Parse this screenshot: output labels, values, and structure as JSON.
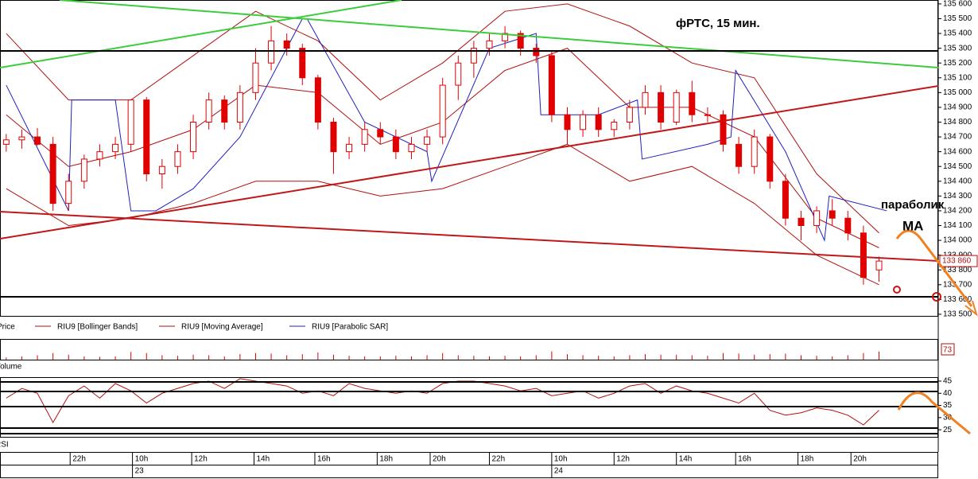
{
  "chart_data": [
    {
      "type": "candlestick",
      "title": "фРТС,  15 мин.",
      "annotations": [
        "параболик",
        "MA"
      ],
      "legend": "Price",
      "color": "#e00000",
      "x": [
        0,
        1,
        2,
        3,
        4,
        5,
        6,
        7,
        8,
        9,
        10,
        11,
        12,
        13,
        14,
        15,
        16,
        17,
        18,
        19,
        20,
        21,
        22,
        23,
        24,
        25,
        26,
        27,
        28,
        29,
        30,
        31,
        32,
        33,
        34,
        35,
        36,
        37,
        38,
        39,
        40,
        41,
        42,
        43,
        44,
        45,
        46,
        47,
        48,
        49,
        50,
        51,
        52,
        53,
        54,
        55,
        56
      ],
      "open": [
        134650,
        134680,
        134700,
        134650,
        134250,
        134400,
        134550,
        134600,
        134650,
        134950,
        134450,
        134500,
        134600,
        134800,
        134950,
        134800,
        135000,
        135200,
        135350,
        135300,
        135100,
        134800,
        134600,
        134650,
        134750,
        134700,
        134600,
        134650,
        134700,
        135050,
        135200,
        135300,
        135350,
        135400,
        135300,
        135250,
        134850,
        134750,
        134850,
        134750,
        134800,
        134900,
        135000,
        134800,
        135000,
        134850,
        134850,
        134650,
        134500,
        134700,
        134400,
        134150,
        134100,
        134200,
        134150,
        134050,
        133800
      ],
      "high": [
        134720,
        134750,
        134760,
        134700,
        134450,
        134580,
        134650,
        134700,
        134950,
        134970,
        134550,
        134650,
        134850,
        135000,
        134980,
        135050,
        135300,
        135450,
        135400,
        135330,
        135120,
        134830,
        134700,
        134800,
        134800,
        134750,
        134700,
        134750,
        135100,
        135250,
        135350,
        135400,
        135450,
        135420,
        135330,
        135280,
        134900,
        134880,
        134900,
        134820,
        134950,
        135050,
        135050,
        135020,
        135080,
        134900,
        134880,
        134700,
        134750,
        134720,
        134450,
        134200,
        134230,
        134280,
        134200,
        134100,
        133890
      ],
      "low": [
        134600,
        134620,
        134640,
        134200,
        134200,
        134350,
        134500,
        134550,
        134600,
        134400,
        134350,
        134450,
        134550,
        134750,
        134750,
        134750,
        134950,
        135150,
        135250,
        135050,
        134750,
        134450,
        134550,
        134600,
        134650,
        134550,
        134550,
        134600,
        134650,
        134950,
        135100,
        135250,
        135300,
        135250,
        135200,
        134800,
        134650,
        134700,
        134700,
        134700,
        134750,
        134850,
        134750,
        134780,
        134800,
        134800,
        134600,
        134450,
        134450,
        134350,
        134100,
        134000,
        134050,
        134100,
        134000,
        133700,
        133720
      ],
      "close": [
        134680,
        134700,
        134650,
        134250,
        134400,
        134550,
        134600,
        134650,
        134950,
        134450,
        134500,
        134600,
        134800,
        134950,
        134800,
        135000,
        135200,
        135350,
        135300,
        135100,
        134800,
        134600,
        134650,
        134750,
        134700,
        134600,
        134650,
        134700,
        135050,
        135200,
        135300,
        135350,
        135400,
        135300,
        135250,
        134850,
        134750,
        134850,
        134750,
        134800,
        134900,
        135000,
        134800,
        135000,
        134850,
        134850,
        134650,
        134500,
        134700,
        134400,
        134150,
        134100,
        134200,
        134150,
        134050,
        133750,
        133860
      ],
      "last_label": {
        "value": 133860,
        "label": "133 860"
      },
      "xlim": [
        -0.4,
        59.8
      ],
      "ylim": [
        133489,
        135621
      ],
      "yticks": [
        {
          "value": 135600,
          "label": "135 600"
        },
        {
          "value": 135500,
          "label": "135 500"
        },
        {
          "value": 135400,
          "label": "135 400"
        },
        {
          "value": 135300,
          "label": "135 300"
        },
        {
          "value": 135200,
          "label": "135 200"
        },
        {
          "value": 135100,
          "label": "135 100"
        },
        {
          "value": 135000,
          "label": "135 000"
        },
        {
          "value": 134900,
          "label": "134 900"
        },
        {
          "value": 134800,
          "label": "134 800"
        },
        {
          "value": 134700,
          "label": "134 700"
        },
        {
          "value": 134600,
          "label": "134 600"
        },
        {
          "value": 134500,
          "label": "134 500"
        },
        {
          "value": 134400,
          "label": "134 400"
        },
        {
          "value": 134300,
          "label": "134 300"
        },
        {
          "value": 134200,
          "label": "134 200"
        },
        {
          "value": 134100,
          "label": "134 100"
        },
        {
          "value": 134000,
          "label": "134 000"
        },
        {
          "value": 133900,
          "label": "133 900"
        },
        {
          "value": 133800,
          "label": "133 800"
        },
        {
          "value": 133700,
          "label": "133 700"
        },
        {
          "value": 133600,
          "label": "133 600"
        },
        {
          "value": 133500,
          "label": "133 500"
        }
      ],
      "series": [
        {
          "name": "RIU9 [Bollinger Bands]",
          "color": "#b01010",
          "x": [
            0,
            4,
            8,
            12,
            16,
            20,
            24,
            28,
            32,
            36,
            40,
            44,
            48,
            52,
            56
          ],
          "values": [
            135400,
            134950,
            134950,
            135250,
            135550,
            135350,
            134950,
            135200,
            135550,
            135600,
            135450,
            135200,
            135100,
            134450,
            134050
          ],
          "values_lower": [
            134350,
            134100,
            134150,
            134250,
            134400,
            134400,
            134300,
            134350,
            134500,
            134650,
            134400,
            134500,
            134250,
            133900,
            133700
          ]
        },
        {
          "name": "RIU9 [Moving Average]",
          "color": "#b01010",
          "x": [
            0,
            4,
            8,
            12,
            16,
            20,
            24,
            28,
            32,
            36,
            40,
            44,
            48,
            52,
            56
          ],
          "values": [
            134850,
            134500,
            134600,
            134750,
            135050,
            135000,
            134650,
            134800,
            135150,
            135300,
            134900,
            134900,
            134700,
            134150,
            133950
          ]
        },
        {
          "name": "RIU9 [Parabolic SAR]",
          "color": "#2020c0",
          "x": [
            0,
            4,
            4.2,
            7,
            8,
            9.6,
            12,
            15,
            19,
            19.3,
            23,
            27,
            27.3,
            31,
            34,
            34.3,
            38,
            40.5,
            40.8,
            45,
            46.5,
            46.8,
            50,
            52.5,
            52.8,
            56.5
          ],
          "values": [
            135050,
            134200,
            134950,
            134950,
            134200,
            134200,
            134350,
            134700,
            135500,
            135500,
            134800,
            134600,
            134400,
            135300,
            135400,
            134850,
            134850,
            134950,
            134550,
            134650,
            134700,
            135150,
            134600,
            134000,
            134300,
            134200
          ]
        }
      ]
    },
    {
      "type": "bar",
      "title": "Volume",
      "color": "#e00000",
      "x": [
        0,
        1,
        2,
        3,
        4,
        5,
        6,
        7,
        8,
        9,
        10,
        11,
        12,
        13,
        14,
        15,
        16,
        17,
        18,
        19,
        20,
        21,
        22,
        23,
        24,
        25,
        26,
        27,
        28,
        29,
        30,
        31,
        32,
        33,
        34,
        35,
        36,
        37,
        38,
        39,
        40,
        41,
        42,
        43,
        44,
        45,
        46,
        47,
        48,
        49,
        50,
        51,
        52,
        53,
        54,
        55,
        56
      ],
      "values": [
        20,
        30,
        40,
        60,
        45,
        30,
        25,
        30,
        70,
        60,
        40,
        35,
        45,
        40,
        30,
        50,
        60,
        55,
        40,
        50,
        65,
        45,
        35,
        30,
        30,
        35,
        30,
        40,
        60,
        40,
        35,
        30,
        35,
        30,
        40,
        75,
        50,
        40,
        35,
        30,
        40,
        50,
        45,
        45,
        40,
        35,
        60,
        55,
        45,
        50,
        55,
        40,
        35,
        30,
        40,
        60,
        73
      ],
      "xlim": [
        -0.4,
        59.8
      ],
      "ylim": [
        0,
        180
      ]
    },
    {
      "type": "line",
      "title": "RSI",
      "color": "#b01010",
      "x": [
        0,
        1,
        2,
        3,
        4,
        5,
        6,
        7,
        8,
        9,
        10,
        11,
        12,
        13,
        14,
        15,
        16,
        17,
        18,
        19,
        20,
        21,
        22,
        23,
        24,
        25,
        26,
        27,
        28,
        29,
        30,
        31,
        32,
        33,
        34,
        35,
        36,
        37,
        38,
        39,
        40,
        41,
        42,
        43,
        44,
        45,
        46,
        47,
        48,
        49,
        50,
        51,
        52,
        53,
        54,
        55,
        56
      ],
      "values": [
        38,
        42,
        40,
        28,
        39,
        43,
        38,
        44,
        41,
        36,
        40,
        42,
        44,
        45,
        42,
        46,
        45,
        44,
        43,
        40,
        41,
        39,
        44,
        42,
        41,
        40,
        41,
        40,
        44,
        45,
        45,
        44,
        43,
        41,
        42,
        39,
        40,
        41,
        38,
        40,
        43,
        44,
        40,
        43,
        41,
        40,
        38,
        36,
        40,
        33,
        31,
        32,
        34,
        33,
        31,
        27,
        33
      ],
      "xlim": [
        -0.4,
        59.8
      ],
      "ylim": [
        22.1,
        46.3
      ],
      "yticks": [
        25,
        30,
        35,
        40,
        45
      ],
      "xticks": [
        {
          "value": 4.1,
          "label": "22h"
        },
        {
          "value": 8.1,
          "label": "10h"
        },
        {
          "value": 11.9,
          "label": "12h"
        },
        {
          "value": 15.9,
          "label": "14h"
        },
        {
          "value": 19.8,
          "label": "16h"
        },
        {
          "value": 23.8,
          "label": "18h"
        },
        {
          "value": 27.2,
          "label": "20h"
        },
        {
          "value": 31.0,
          "label": "22h"
        },
        {
          "value": 35.0,
          "label": "10h"
        },
        {
          "value": 39.0,
          "label": "12h"
        },
        {
          "value": 43.0,
          "label": "14h"
        },
        {
          "value": 46.8,
          "label": "16h"
        },
        {
          "value": 50.8,
          "label": "18h"
        },
        {
          "value": 54.2,
          "label": "20h"
        }
      ],
      "date_ticks": [
        {
          "value": 8.1,
          "label": "23"
        },
        {
          "value": 35.0,
          "label": "24"
        }
      ]
    }
  ]
}
